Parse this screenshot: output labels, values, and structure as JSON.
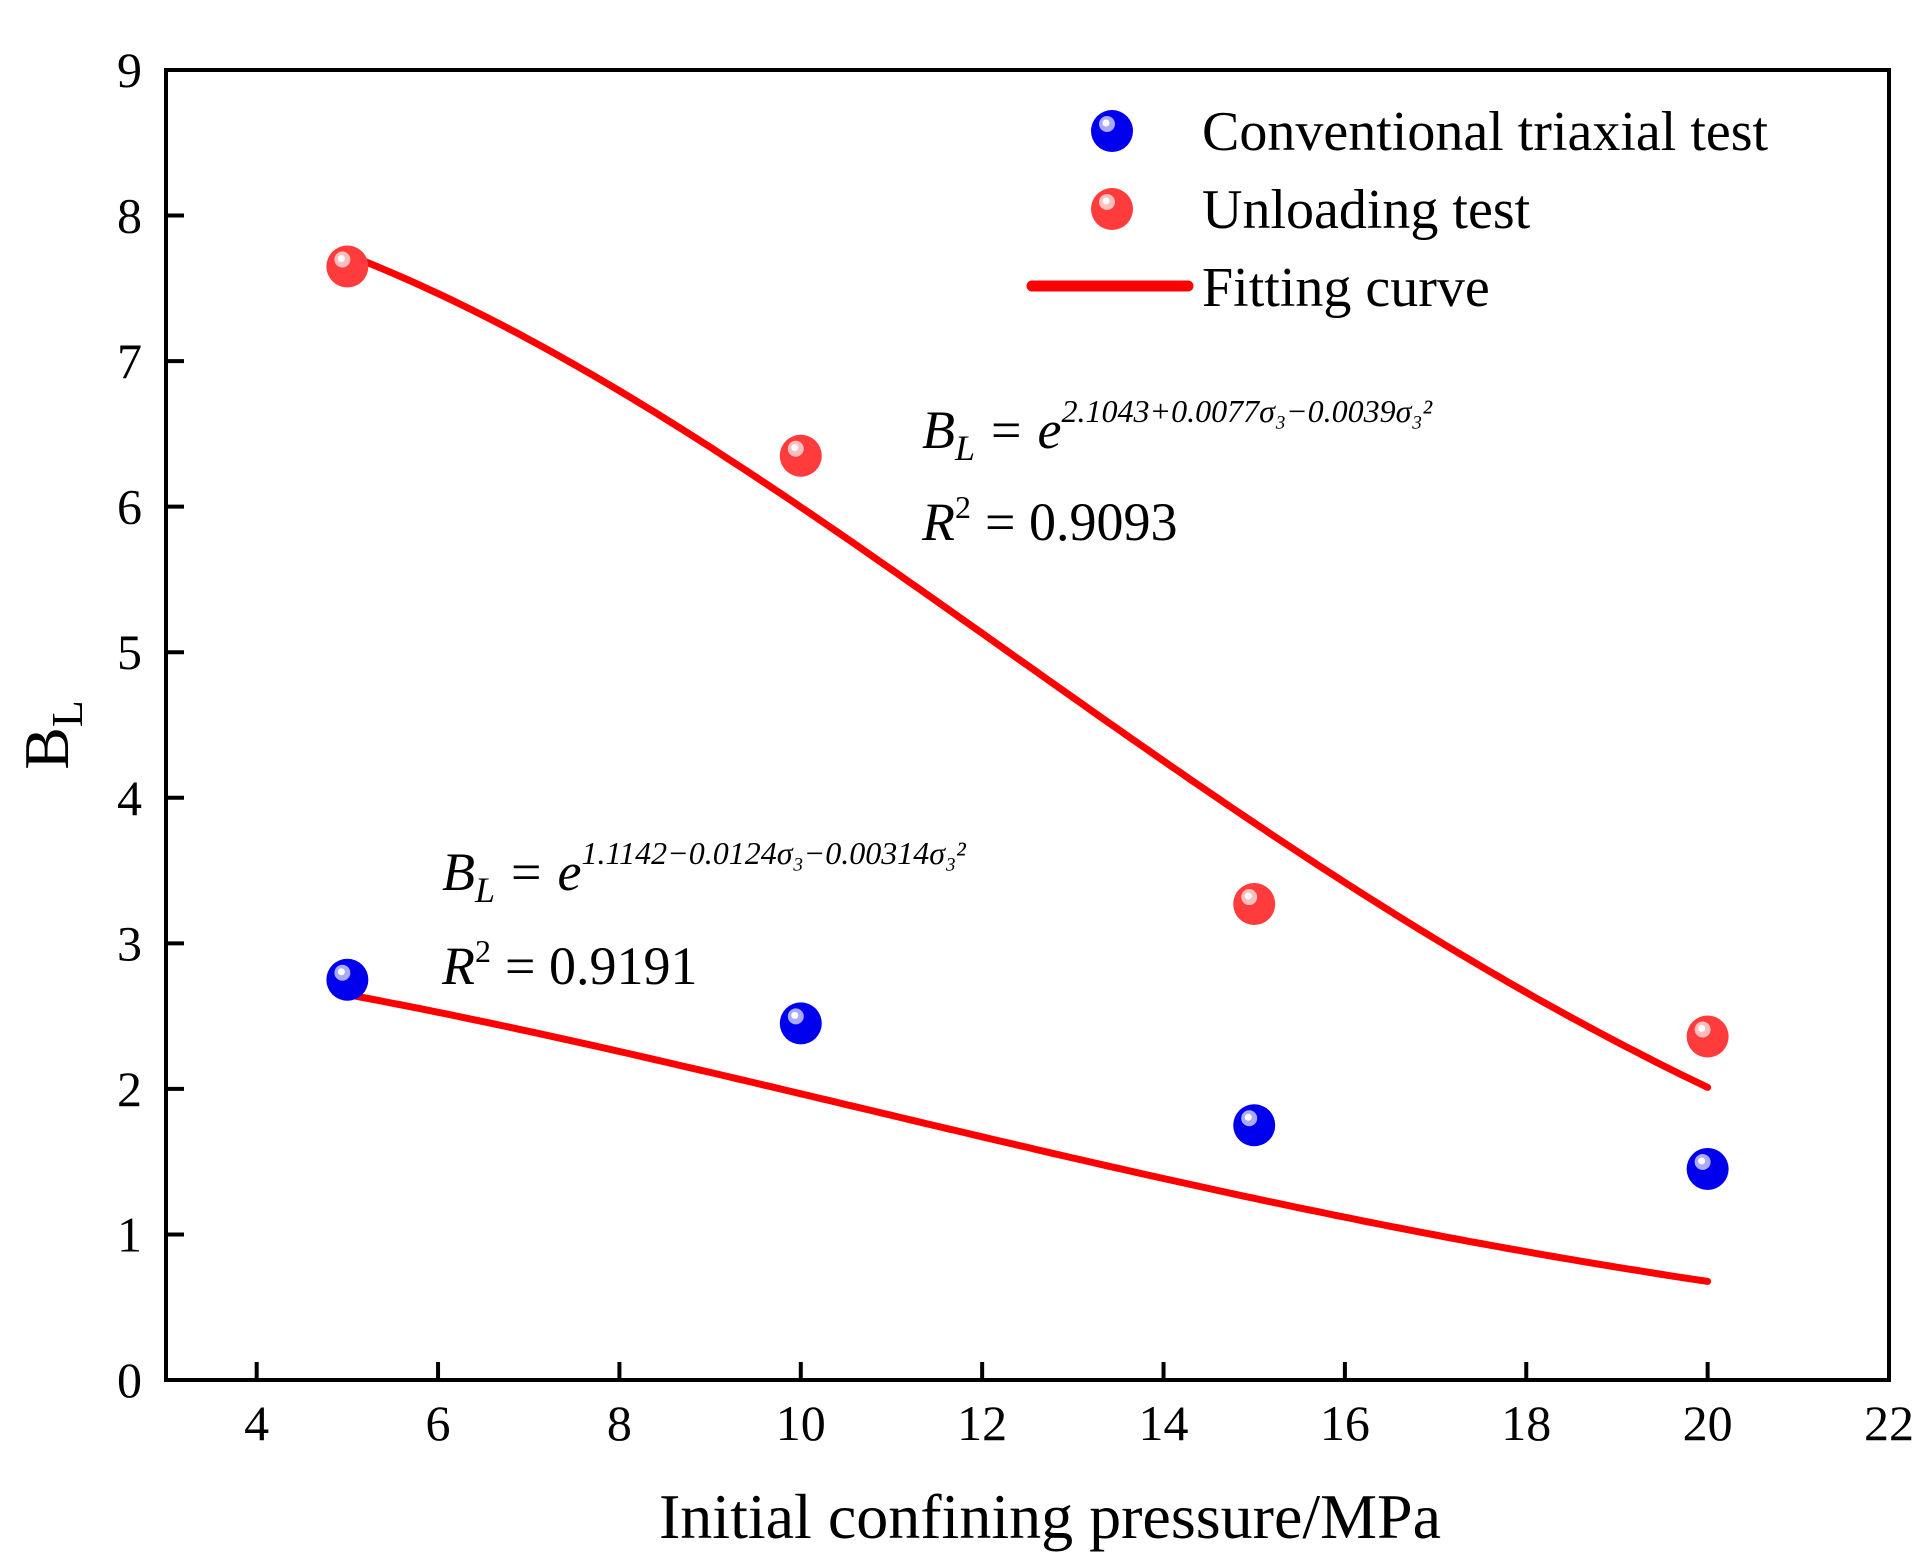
{
  "chart_data": {
    "type": "scatter",
    "xlabel": "Initial confining pressure/MPa",
    "ylabel": "B",
    "ylabel_subscript": "L",
    "xlim": [
      3,
      22
    ],
    "ylim": [
      0,
      9
    ],
    "xticks": [
      4,
      6,
      8,
      10,
      12,
      14,
      16,
      18,
      20,
      22
    ],
    "yticks": [
      0,
      1,
      2,
      3,
      4,
      5,
      6,
      7,
      8,
      9
    ],
    "grid": false,
    "legend_position": "top-right",
    "series": [
      {
        "name": "Conventional triaxial test",
        "kind": "points",
        "color": "#0000ee",
        "highlight": "#c8c8ff",
        "x": [
          5,
          10,
          15,
          20
        ],
        "y": [
          2.75,
          2.45,
          1.75,
          1.45
        ]
      },
      {
        "name": "Unloading test",
        "kind": "points",
        "color": "#ff3b3b",
        "highlight": "#ffd6d6",
        "x": [
          5,
          10,
          15,
          20
        ],
        "y": [
          7.65,
          6.35,
          3.27,
          2.36
        ]
      }
    ],
    "fits": [
      {
        "name": "Fitting curve",
        "color": "#ff0000",
        "applies_to": "Conventional triaxial test",
        "coefficients": [
          1.1142,
          -0.0124,
          -0.00314
        ],
        "x_range": [
          5,
          20
        ]
      },
      {
        "name": "Fitting curve",
        "color": "#ff0000",
        "applies_to": "Unloading test",
        "coefficients": [
          2.1043,
          0.0077,
          -0.0039
        ],
        "x_range": [
          5,
          20
        ]
      }
    ],
    "legend": [
      {
        "label": "Conventional triaxial test",
        "marker": "circle",
        "color": "#0000ee"
      },
      {
        "label": "Unloading test",
        "marker": "circle",
        "color": "#ff3b3b"
      },
      {
        "label": "Fitting curve",
        "marker": "line",
        "color": "#ff0000"
      }
    ],
    "annotations": [
      {
        "id": "unloading",
        "lhs": "B",
        "lhs_sub": "L",
        "eq": "=",
        "base": "e",
        "exponent": "2.1043+0.0077σ₃−0.0039σ₃²",
        "r2_label": "R",
        "r2_sup": "2",
        "r2_value": "= 0.9093"
      },
      {
        "id": "conventional",
        "lhs": "B",
        "lhs_sub": "L",
        "eq": "=",
        "base": "e",
        "exponent": "1.1142−0.0124σ₃−0.00314σ₃²",
        "r2_label": "R",
        "r2_sup": "2",
        "r2_value": "= 0.9191"
      }
    ]
  }
}
